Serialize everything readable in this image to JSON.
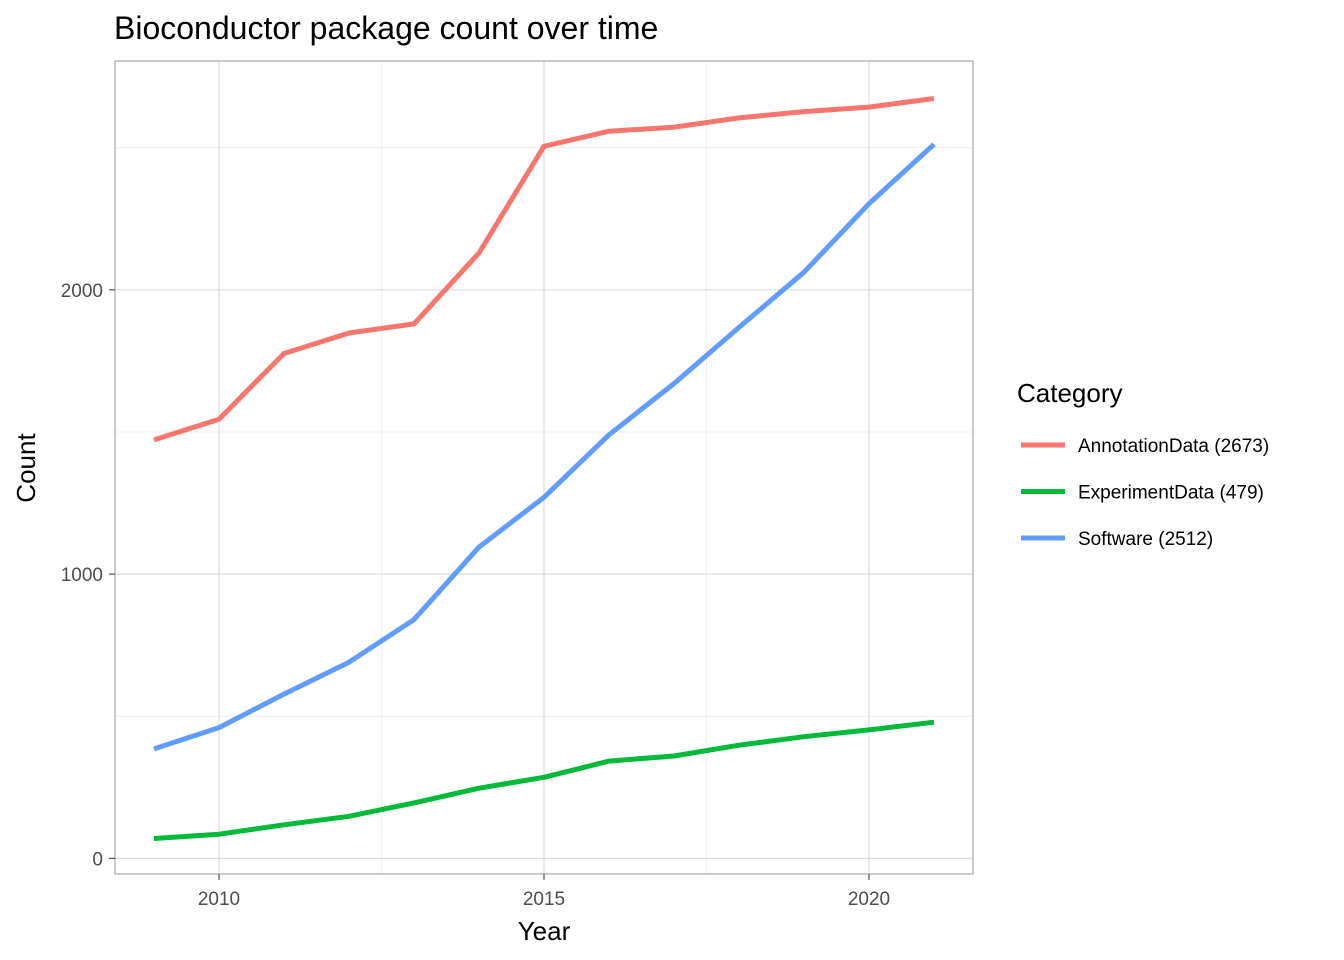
{
  "chart_data": {
    "type": "line",
    "title": "Bioconductor package count over time",
    "xlabel": "Year",
    "ylabel": "Count",
    "xlim": [
      2008.4,
      2021.6
    ],
    "ylim": [
      -55,
      2805
    ],
    "x_ticks": [
      2010,
      2015,
      2020
    ],
    "y_ticks": [
      0,
      1000,
      2000
    ],
    "grid": true,
    "legend": {
      "title": "Category",
      "placement": "right"
    },
    "x": [
      2009,
      2010,
      2011,
      2012,
      2013,
      2014,
      2015,
      2016,
      2017,
      2018,
      2019,
      2020,
      2021
    ],
    "series": [
      {
        "name": "AnnotationData (2673)",
        "color": "#F8766D",
        "values": [
          1472,
          1545,
          1776,
          1848,
          1880,
          2130,
          2505,
          2558,
          2572,
          2605,
          2627,
          2643,
          2673
        ]
      },
      {
        "name": "ExperimentData (479)",
        "color": "#00BA38",
        "values": [
          70,
          85,
          118,
          148,
          195,
          247,
          285,
          342,
          360,
          398,
          428,
          452,
          479
        ]
      },
      {
        "name": "Software (2512)",
        "color": "#619CFF",
        "values": [
          385,
          460,
          578,
          690,
          840,
          1095,
          1270,
          1490,
          1670,
          1868,
          2062,
          2303,
          2512
        ]
      }
    ]
  }
}
